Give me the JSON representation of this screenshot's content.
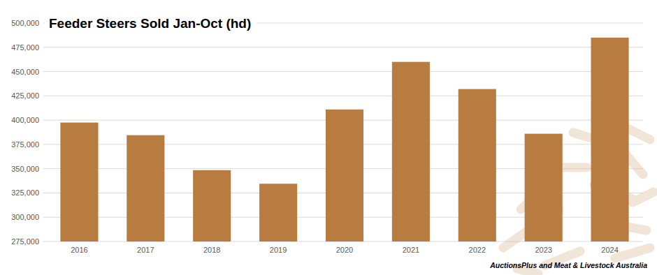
{
  "chart_data": {
    "type": "bar",
    "title": "Feeder Steers Sold Jan-Oct (hd)",
    "source": "AuctionsPlus and Meat & Livestock Australia",
    "categories": [
      "2016",
      "2017",
      "2018",
      "2019",
      "2020",
      "2021",
      "2022",
      "2023",
      "2024"
    ],
    "values": [
      397500,
      384500,
      348500,
      334500,
      411000,
      460000,
      432000,
      386000,
      485000
    ],
    "color": "#b87b40",
    "ylim": [
      275000,
      500000
    ],
    "yticks": [
      {
        "value": 275000,
        "label": "275,000"
      },
      {
        "value": 300000,
        "label": "300,000"
      },
      {
        "value": 325000,
        "label": "325,000"
      },
      {
        "value": 350000,
        "label": "350,000"
      },
      {
        "value": 375000,
        "label": "375,000"
      },
      {
        "value": 400000,
        "label": "400,000"
      },
      {
        "value": 425000,
        "label": "425,000"
      },
      {
        "value": 450000,
        "label": "450,000"
      },
      {
        "value": 475000,
        "label": "475,000"
      },
      {
        "value": 500000,
        "label": "500,000"
      }
    ],
    "grid": true
  }
}
